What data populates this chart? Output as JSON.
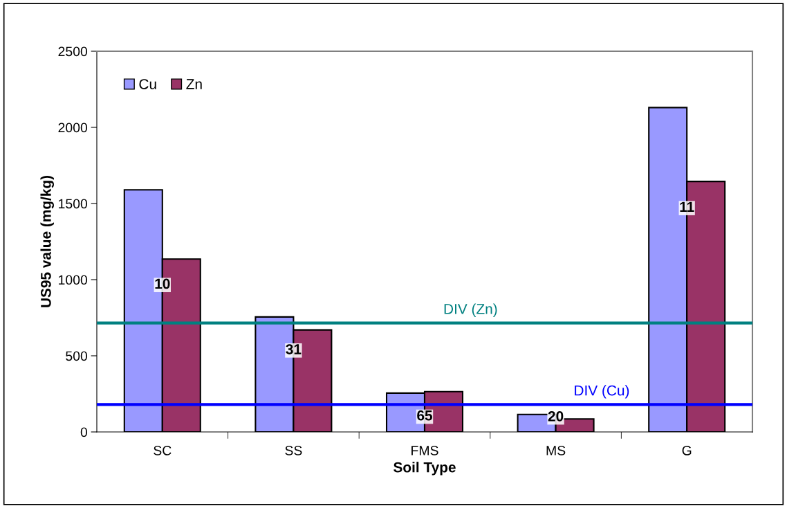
{
  "chart_data": {
    "type": "bar",
    "categories": [
      "SC",
      "SS",
      "FMS",
      "MS",
      "G"
    ],
    "series": [
      {
        "name": "Cu",
        "color": "#9999ff",
        "values": [
          1590,
          755,
          255,
          115,
          2130
        ]
      },
      {
        "name": "Zn",
        "color": "#993366",
        "values": [
          1135,
          670,
          265,
          85,
          1645
        ]
      }
    ],
    "xlabel": "Soil Type",
    "ylabel": "US95 value (mg/kg)",
    "ylim": [
      0,
      2500
    ],
    "yticks": [
      0,
      500,
      1000,
      1500,
      2000,
      2500
    ],
    "ref_lines": [
      {
        "axis": "y",
        "value": 715,
        "label": "DIV (Zn)",
        "color": "#008080"
      },
      {
        "axis": "y",
        "value": 180,
        "label": "DIV (Cu)",
        "color": "#0000ff"
      }
    ],
    "annotations": [
      {
        "text": "10",
        "x": "SC",
        "y": 965
      },
      {
        "text": "31",
        "x": "SS",
        "y": 535
      },
      {
        "text": "65",
        "x": "FMS",
        "y": 100
      },
      {
        "text": "20",
        "x": "MS",
        "y": 95
      },
      {
        "text": "11",
        "x": "G",
        "y": 1470
      }
    ],
    "grid": false,
    "legend": "top left"
  }
}
